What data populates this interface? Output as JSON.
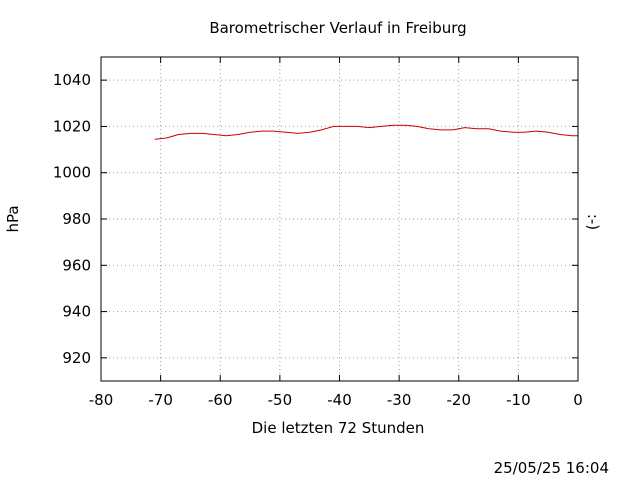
{
  "chart_data": {
    "type": "line",
    "title": "Barometrischer Verlauf in Freiburg",
    "xlabel": "Die letzten 72 Stunden",
    "ylabel": "hPa",
    "y2label": ":-)",
    "timestamp": "25/05/25 16:04",
    "xlim": [
      -80,
      0
    ],
    "ylim": [
      910,
      1050
    ],
    "xticks": [
      -80,
      -70,
      -60,
      -50,
      -40,
      -30,
      -20,
      -10,
      0
    ],
    "yticks": [
      920,
      940,
      960,
      980,
      1000,
      1020,
      1040
    ],
    "grid": true,
    "line_color": "#cc0000",
    "series": [
      {
        "x": [
          -71,
          -69,
          -67,
          -65,
          -63,
          -61,
          -59,
          -57,
          -55,
          -53,
          -51,
          -49,
          -47,
          -45,
          -43,
          -41,
          -39,
          -37,
          -35,
          -33,
          -31,
          -29,
          -27,
          -25,
          -23,
          -21,
          -19,
          -17,
          -15,
          -13,
          -11,
          -9,
          -7,
          -5,
          -3,
          -1,
          0
        ],
        "values": [
          1014.5,
          1015,
          1016.5,
          1017,
          1017,
          1016.5,
          1016,
          1016.5,
          1017.5,
          1018,
          1018,
          1017.5,
          1017,
          1017.5,
          1018.5,
          1020,
          1020,
          1020,
          1019.5,
          1020,
          1020.5,
          1020.5,
          1020,
          1019,
          1018.5,
          1018.5,
          1019.5,
          1019,
          1019,
          1018,
          1017.5,
          1017.5,
          1018,
          1017.5,
          1016.5,
          1016,
          1016
        ]
      }
    ]
  }
}
